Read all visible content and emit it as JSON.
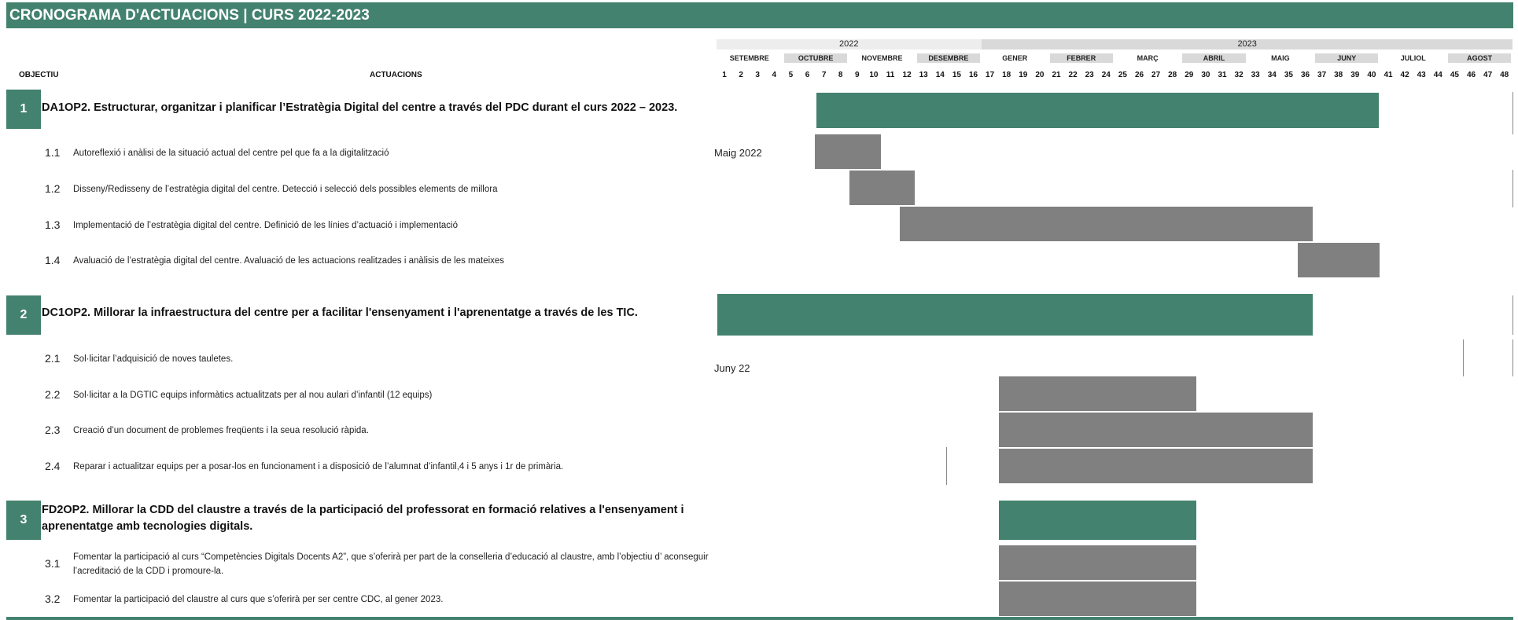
{
  "title": "CRONOGRAMA D'ACTUACIONS | CURS 2022-2023",
  "headers": {
    "objectiu": "OBJECTIU",
    "actuacions": "ACTUACIONS"
  },
  "years": [
    "2022",
    "2023"
  ],
  "months": [
    "SETEMBRE",
    "OCTUBRE",
    "NOVEMBRE",
    "DESEMBRE",
    "GENER",
    "FEBRER",
    "MARÇ",
    "ABRIL",
    "MAIG",
    "JUNY",
    "JULIOL",
    "AGOST"
  ],
  "weeks": [
    "1",
    "2",
    "3",
    "4",
    "5",
    "6",
    "7",
    "8",
    "9",
    "10",
    "11",
    "12",
    "13",
    "14",
    "15",
    "16",
    "17",
    "18",
    "19",
    "20",
    "21",
    "22",
    "23",
    "24",
    "25",
    "26",
    "27",
    "28",
    "29",
    "30",
    "31",
    "32",
    "33",
    "34",
    "35",
    "36",
    "37",
    "38",
    "39",
    "40",
    "41",
    "42",
    "43",
    "44",
    "45",
    "46",
    "47",
    "48"
  ],
  "colors": {
    "accent": "#43826e",
    "action_bar": "#808080",
    "shade": "#d9d9d9"
  },
  "objectives": [
    {
      "num": "1",
      "text": "DA1OP2. Estructurar, organitzar i planificar l’Estratègia Digital del centre a través del PDC durant el curs 2022 – 2023.",
      "actions": [
        {
          "num": "1.1",
          "text": "Autoreflexió i anàlisi de la situació actual del centre pel que fa a la digitalització"
        },
        {
          "num": "1.2",
          "text": "Disseny/Redisseny de l’estratègia digital del centre. Detecció i selecció dels possibles elements de millora"
        },
        {
          "num": "1.3",
          "text": "Implementació de l’estratègia digital del centre. Definició de les línies d’actuació i implementació"
        },
        {
          "num": "1.4",
          "text": "Avaluació de l’estratègia digital del centre. Avaluació de les actuacions realitzades i anàlisis de les mateixes"
        }
      ]
    },
    {
      "num": "2",
      "text": "DC1OP2. Millorar la infraestructura del centre per a facilitar l'ensenyament i l'aprenentatge a través de les TIC.",
      "actions": [
        {
          "num": "2.1",
          "text": "Sol·licitar l’adquisició de noves tauletes."
        },
        {
          "num": "2.2",
          "text": "Sol·licitar a la DGTIC equips informàtics actualitzats per al nou aulari d’infantil (12 equips)"
        },
        {
          "num": "2.3",
          "text": "Creació d’un document de problemes freqüents i la seua resolució ràpida."
        },
        {
          "num": "2.4",
          "text": "Reparar i actualitzar equips per a posar-los en funcionament i a disposició de l’alumnat d’infantil,4 i 5 anys i 1r de primària."
        }
      ]
    },
    {
      "num": "3",
      "text": "FD2OP2. Millorar la CDD del claustre a través de la participació del professorat en formació relatives a l'ensenyament i aprenentatge amb tecnologies digitals.",
      "actions": [
        {
          "num": "3.1",
          "text": "Fomentar la participació al curs “Competències Digitals Docents A2”, que s’oferirà per part de la  conselleria d’educació al claustre, amb l’objectiu d’ aconseguir l’acreditació de la CDD i promoure-la."
        },
        {
          "num": "3.2",
          "text": "Fomentar la participació del claustre al curs que s’oferirà per ser centre CDC, al gener 2023."
        }
      ]
    }
  ],
  "notes": {
    "maig_2022": "Maig 2022",
    "juny_22": "Juny 22"
  },
  "schedule": [
    {
      "item": "1",
      "start_week": 6.5,
      "end_week": 40.5
    },
    {
      "item": "1.1",
      "start_week": 6.4,
      "end_week": 10.5
    },
    {
      "item": "1.2",
      "start_week": 8.5,
      "end_week": 12.5
    },
    {
      "item": "1.3",
      "start_week": 11.5,
      "end_week": 36.5
    },
    {
      "item": "1.4",
      "start_week": 35.5,
      "end_week": 40.5
    },
    {
      "item": "2",
      "start_week": 0.5,
      "end_week": 36.5
    },
    {
      "item": "2.2",
      "start_week": 17.5,
      "end_week": 29.5
    },
    {
      "item": "2.3",
      "start_week": 17.5,
      "end_week": 36.5
    },
    {
      "item": "2.4",
      "start_week": 17.5,
      "end_week": 36.5
    },
    {
      "item": "3",
      "start_week": 17.5,
      "end_week": 29.5
    },
    {
      "item": "3.1",
      "start_week": 17.5,
      "end_week": 29.5
    },
    {
      "item": "3.2",
      "start_week": 17.5,
      "end_week": 29.5
    }
  ]
}
